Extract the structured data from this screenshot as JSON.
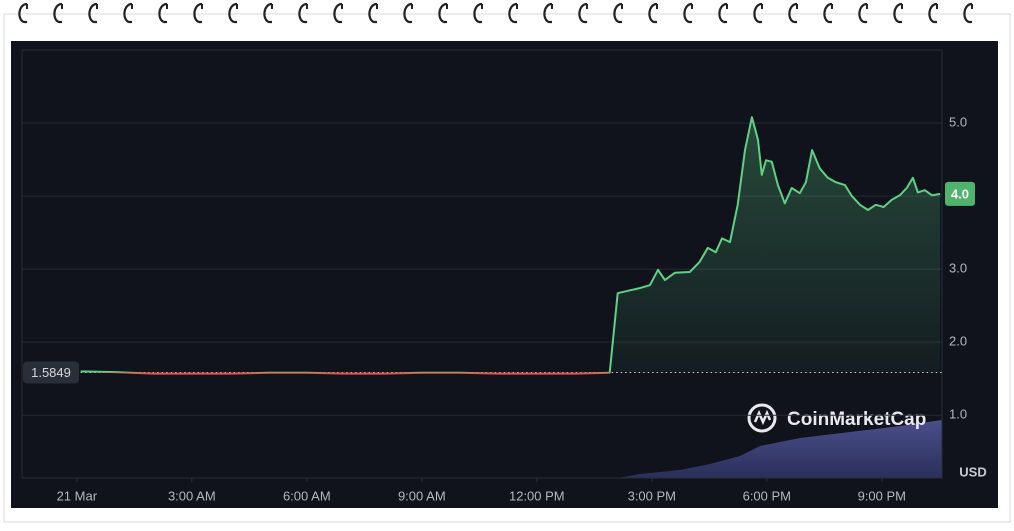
{
  "chart_data": {
    "type": "line",
    "x": [
      0.1,
      1,
      2,
      3,
      4,
      5,
      6,
      7,
      8,
      9,
      10,
      11,
      12,
      13,
      13.9,
      14.11,
      14.43,
      14.69,
      14.95,
      15.16,
      15.34,
      15.6,
      15.99,
      16.25,
      16.46,
      16.67,
      16.83,
      17.04,
      17.24,
      17.43,
      17.61,
      17.77,
      17.87,
      17.98,
      18.13,
      18.29,
      18.47,
      18.65,
      18.86,
      19.02,
      19.18,
      19.38,
      19.59,
      19.8,
      20.04,
      20.22,
      20.43,
      20.64,
      20.84,
      21.05,
      21.26,
      21.47,
      21.65,
      21.81,
      21.94,
      22.12,
      22.31,
      22.52
    ],
    "values": [
      1.6,
      1.59,
      1.57,
      1.57,
      1.57,
      1.58,
      1.58,
      1.57,
      1.57,
      1.58,
      1.58,
      1.57,
      1.57,
      1.57,
      1.58,
      2.67,
      2.71,
      2.74,
      2.78,
      2.99,
      2.85,
      2.95,
      2.96,
      3.1,
      3.29,
      3.23,
      3.42,
      3.37,
      3.88,
      4.63,
      5.08,
      4.77,
      4.29,
      4.49,
      4.47,
      4.15,
      3.9,
      4.11,
      4.04,
      4.19,
      4.63,
      4.38,
      4.25,
      4.19,
      4.15,
      4.0,
      3.88,
      3.81,
      3.88,
      3.85,
      3.95,
      4.01,
      4.11,
      4.25,
      4.05,
      4.08,
      4.01,
      4.03
    ],
    "baseline": 1.5849,
    "baseline_label": "1.5849",
    "last_price": "4.0",
    "color_above": "#5fd184",
    "color_below": "#e2544f",
    "xlim": [
      -1.43,
      22.57
    ],
    "xticks": [
      {
        "value": 0,
        "label": "21 Mar"
      },
      {
        "value": 3,
        "label": "3:00 AM"
      },
      {
        "value": 6,
        "label": "6:00 AM"
      },
      {
        "value": 9,
        "label": "9:00 AM"
      },
      {
        "value": 12,
        "label": "12:00 PM"
      },
      {
        "value": 15,
        "label": "3:00 PM"
      },
      {
        "value": 18,
        "label": "6:00 PM"
      },
      {
        "value": 21,
        "label": "9:00 PM"
      }
    ],
    "ylim": [
      0.14,
      6.0
    ],
    "yticks": [
      {
        "value": 1,
        "label": "1.0"
      },
      {
        "value": 2,
        "label": "2.0"
      },
      {
        "value": 3,
        "label": "3.0"
      },
      {
        "value": 4,
        "label": "4.0"
      },
      {
        "value": 5,
        "label": "5.0"
      }
    ],
    "y_unit": "USD",
    "watermark": "CoinMarketCap",
    "grid": true
  }
}
